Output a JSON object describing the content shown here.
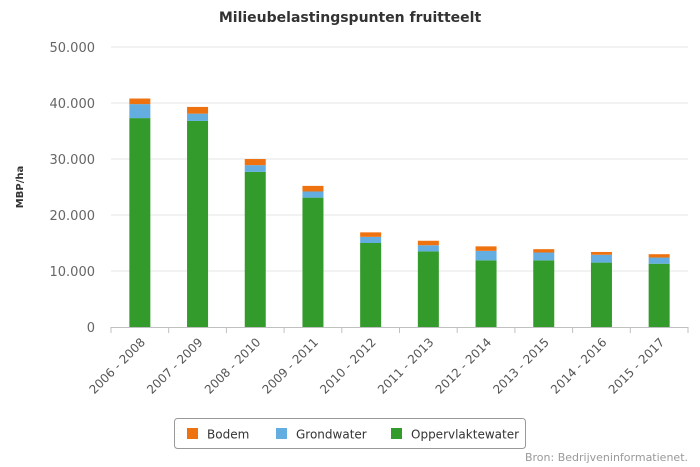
{
  "chart_data": {
    "type": "bar",
    "stacked": true,
    "title": "Milieubelastingspunten fruitteelt",
    "ylabel": "MBP/ha",
    "xlabel": "",
    "ylim": [
      0,
      50000
    ],
    "yticks": [
      0,
      10000,
      20000,
      30000,
      40000,
      50000
    ],
    "ytick_labels": [
      "0",
      "10.000",
      "20.000",
      "30.000",
      "40.000",
      "50.000"
    ],
    "grid": true,
    "legend_position": "bottom",
    "categories": [
      "2006 - 2008",
      "2007 - 2009",
      "2008 - 2010",
      "2009 - 2011",
      "2010 - 2012",
      "2011 - 2013",
      "2012 - 2014",
      "2013 - 2015",
      "2014 - 2016",
      "2015 - 2017"
    ],
    "series": [
      {
        "name": "Oppervlaktewater",
        "color": "#339a2c",
        "values": [
          37300,
          36800,
          27700,
          23100,
          15000,
          13500,
          11900,
          11900,
          11500,
          11300
        ]
      },
      {
        "name": "Grondwater",
        "color": "#63ade0",
        "values": [
          2500,
          1300,
          1200,
          1100,
          1100,
          1100,
          1700,
          1400,
          1400,
          1100
        ]
      },
      {
        "name": "Bodem",
        "color": "#ef7210",
        "values": [
          1000,
          1200,
          1100,
          1000,
          800,
          800,
          800,
          600,
          500,
          600
        ]
      }
    ],
    "legend_order": [
      "Bodem",
      "Grondwater",
      "Oppervlaktewater"
    ],
    "source": "Bron: Bedrijveninformatienet."
  }
}
